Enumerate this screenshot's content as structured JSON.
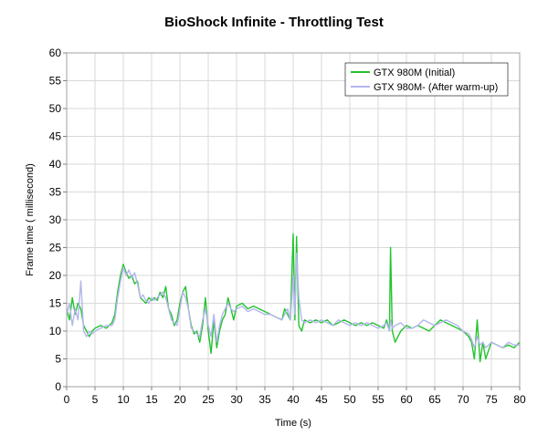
{
  "chart_data": {
    "type": "line",
    "title": "BioShock Infinite - Throttling Test",
    "xlabel": "Time (s)",
    "ylabel": "Frame time ( millisecond)",
    "xlim": [
      0,
      80
    ],
    "ylim": [
      0,
      60
    ],
    "xticks": [
      0,
      5,
      10,
      15,
      20,
      25,
      30,
      35,
      40,
      45,
      50,
      55,
      60,
      65,
      70,
      75,
      80
    ],
    "yticks": [
      0,
      5,
      10,
      15,
      20,
      25,
      30,
      35,
      40,
      45,
      50,
      55,
      60
    ],
    "grid": true,
    "legend_position": "top-right",
    "series": [
      {
        "name": "GTX 980M (Initial)",
        "color": "#22c32e",
        "x": [
          0,
          0.5,
          1,
          1.5,
          2,
          2.5,
          3,
          3.5,
          4,
          4.5,
          5,
          6,
          7,
          8,
          8.5,
          9,
          9.5,
          10,
          10.5,
          11,
          11.5,
          12,
          12.5,
          13,
          13.5,
          14,
          14.5,
          15,
          15.5,
          16,
          16.5,
          17,
          17.5,
          18,
          18.5,
          19,
          19.5,
          20,
          20.5,
          21,
          21.5,
          22,
          22.5,
          23,
          23.5,
          24,
          24.5,
          25,
          25.5,
          26,
          26.5,
          27,
          27.5,
          28,
          28.5,
          29,
          29.5,
          30,
          31,
          32,
          33,
          34,
          35,
          36,
          37,
          38,
          38.5,
          39,
          39.5,
          40,
          40.3,
          40.6,
          41,
          41.5,
          42,
          43,
          44,
          45,
          46,
          47,
          48,
          49,
          50,
          51,
          52,
          53,
          54,
          55,
          56,
          56.5,
          57,
          57.2,
          57.5,
          58,
          59,
          60,
          61,
          62,
          63,
          64,
          65,
          66,
          67,
          68,
          69,
          70,
          71,
          71.5,
          72,
          72.5,
          73,
          73.5,
          74,
          75,
          76,
          77,
          78,
          79,
          80
        ],
        "y": [
          14,
          12,
          16,
          13,
          15,
          14,
          11,
          10,
          9,
          10,
          10.5,
          11,
          10.5,
          11.5,
          13,
          17,
          20,
          22,
          20.5,
          19.5,
          20,
          18.5,
          19,
          16,
          15.5,
          15,
          16,
          15.5,
          16,
          15.5,
          17,
          16,
          18,
          14,
          13,
          11,
          12,
          15,
          17,
          18,
          14,
          11,
          9.5,
          10,
          8,
          11,
          16,
          10,
          6,
          12,
          7,
          10,
          12,
          13,
          16,
          14,
          12,
          14.5,
          15,
          14,
          14.5,
          14,
          13.5,
          13,
          12.5,
          12,
          14,
          13,
          12,
          27.5,
          12,
          27,
          11,
          10,
          12,
          11.5,
          12,
          11.5,
          12,
          11,
          11.5,
          12,
          11.5,
          11,
          11.5,
          11,
          11.5,
          11,
          10.5,
          12,
          10,
          25,
          10,
          8,
          10,
          11,
          10.5,
          11,
          10.5,
          10,
          11,
          12,
          11.5,
          11,
          10.5,
          10,
          9,
          8,
          5,
          12,
          4.5,
          8,
          5,
          8,
          7.5,
          7,
          7.5,
          7,
          8
        ]
      },
      {
        "name": "GTX 980M- (After warm-up)",
        "color": "#b4b6ef",
        "x": [
          0,
          0.5,
          1,
          1.5,
          2,
          2.5,
          3,
          3.5,
          4,
          4.5,
          5,
          6,
          7,
          8,
          8.5,
          9,
          9.5,
          10,
          10.5,
          11,
          11.5,
          12,
          12.5,
          13,
          13.5,
          14,
          14.5,
          15,
          15.5,
          16,
          16.5,
          17,
          17.5,
          18,
          18.5,
          19,
          19.5,
          20,
          20.5,
          21,
          21.5,
          22,
          22.5,
          23,
          23.5,
          24,
          24.5,
          25,
          25.5,
          26,
          26.5,
          27,
          27.5,
          28,
          28.5,
          29,
          29.5,
          30,
          31,
          32,
          33,
          34,
          35,
          36,
          37,
          38,
          38.5,
          39,
          39.5,
          40,
          40.3,
          40.6,
          41,
          41.5,
          42,
          43,
          44,
          45,
          46,
          47,
          48,
          49,
          50,
          51,
          52,
          53,
          54,
          55,
          56,
          56.5,
          57,
          57.2,
          57.5,
          58,
          59,
          60,
          61,
          62,
          63,
          64,
          65,
          66,
          67,
          68,
          69,
          70,
          71,
          71.5,
          72,
          72.5,
          73,
          73.5,
          74,
          75,
          76,
          77,
          78,
          79,
          80
        ],
        "y": [
          13,
          15,
          11,
          14,
          12,
          19,
          10,
          9,
          10,
          9.5,
          10,
          10.5,
          11,
          11,
          12,
          16,
          19,
          21.5,
          20,
          21,
          19.5,
          20.5,
          18.5,
          16,
          16.5,
          15.5,
          15,
          16,
          15.5,
          16,
          16.5,
          17,
          16,
          14,
          12,
          11.5,
          11,
          14,
          17,
          16,
          14,
          10.5,
          10,
          9.5,
          9,
          12,
          14,
          11,
          9,
          13,
          8,
          11,
          13,
          14,
          15,
          14,
          13.5,
          14,
          14.5,
          13.5,
          14,
          13.5,
          13,
          13,
          12.5,
          12,
          13,
          14,
          12,
          20,
          13,
          24,
          16,
          12,
          11.5,
          12,
          11.5,
          12,
          11.5,
          11,
          12,
          11.5,
          11,
          11.5,
          11,
          11.5,
          11,
          10.5,
          11,
          11.5,
          10,
          12,
          10.5,
          11,
          11.5,
          10.5,
          10.5,
          11,
          12,
          11.5,
          11,
          11.5,
          12,
          11.5,
          11,
          10,
          9.5,
          8.5,
          7,
          9,
          7.5,
          8,
          7,
          8,
          7.5,
          7,
          8,
          7.5,
          7.5
        ]
      }
    ]
  }
}
